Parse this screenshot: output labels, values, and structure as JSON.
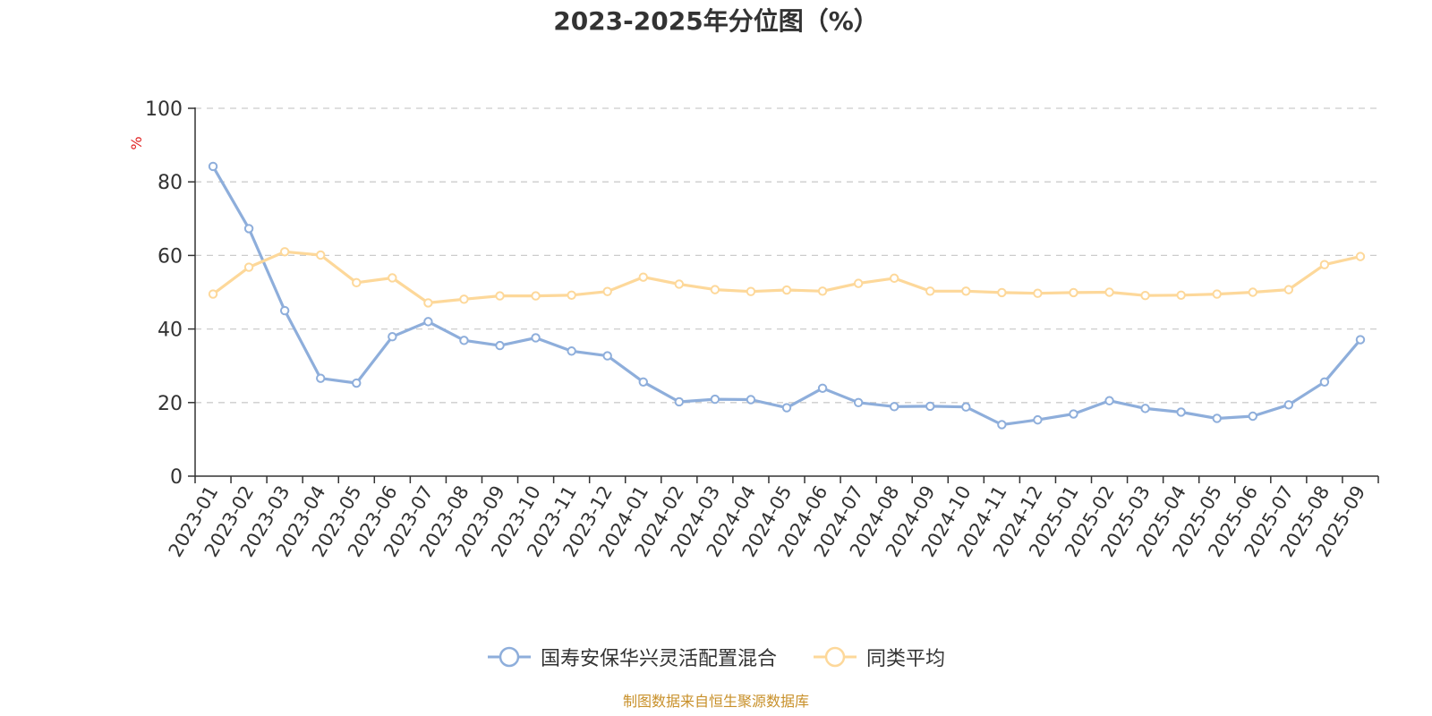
{
  "chart_data": {
    "type": "line",
    "title": "2023-2025年分位图（%）",
    "ylabel": "%",
    "xlabel": "",
    "ylim": [
      0,
      100
    ],
    "yticks": [
      0,
      20,
      40,
      60,
      80,
      100
    ],
    "grid": true,
    "legend_position": "bottom",
    "categories": [
      "2023-01",
      "2023-02",
      "2023-03",
      "2023-04",
      "2023-05",
      "2023-06",
      "2023-07",
      "2023-08",
      "2023-09",
      "2023-10",
      "2023-11",
      "2023-12",
      "2024-01",
      "2024-02",
      "2024-03",
      "2024-04",
      "2024-05",
      "2024-06",
      "2024-07",
      "2024-08",
      "2024-09",
      "2024-10",
      "2024-11",
      "2024-12",
      "2025-01",
      "2025-02",
      "2025-03",
      "2025-04",
      "2025-05",
      "2025-06",
      "2025-07",
      "2025-08",
      "2025-09"
    ],
    "series": [
      {
        "name": "国寿安保华兴灵活配置混合",
        "color": "#8eaedb",
        "values": [
          84.2,
          67.3,
          45.0,
          26.6,
          25.3,
          37.9,
          42.0,
          36.9,
          35.5,
          37.6,
          34.0,
          32.7,
          25.6,
          20.2,
          20.9,
          20.8,
          18.6,
          23.9,
          20.0,
          18.9,
          19.0,
          18.8,
          14.0,
          15.3,
          16.9,
          20.5,
          18.4,
          17.4,
          15.7,
          16.3,
          19.4,
          25.6,
          37.1
        ]
      },
      {
        "name": "同类平均",
        "color": "#fdd89a",
        "values": [
          49.5,
          56.8,
          61.0,
          60.1,
          52.6,
          53.9,
          47.1,
          48.1,
          49.0,
          49.0,
          49.2,
          50.2,
          54.1,
          52.2,
          50.7,
          50.2,
          50.6,
          50.3,
          52.4,
          53.8,
          50.3,
          50.3,
          49.9,
          49.7,
          49.9,
          50.0,
          49.1,
          49.2,
          49.5,
          50.0,
          50.7,
          57.5,
          59.7
        ]
      }
    ]
  },
  "source": "制图数据来自恒生聚源数据库"
}
